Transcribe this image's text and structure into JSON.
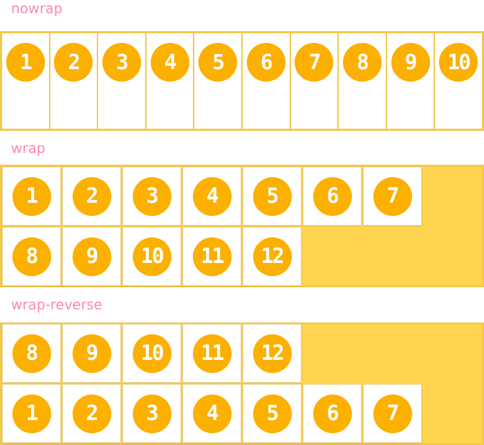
{
  "sections": [
    {
      "label": "nowrap",
      "items": [
        "1",
        "2",
        "3",
        "4",
        "5",
        "6",
        "7",
        "8",
        "9",
        "10"
      ]
    },
    {
      "label": "wrap",
      "items": [
        "1",
        "2",
        "3",
        "4",
        "5",
        "6",
        "7",
        "8",
        "9",
        "10",
        "11",
        "12"
      ]
    },
    {
      "label": "wrap-reverse",
      "items": [
        "1",
        "2",
        "3",
        "4",
        "5",
        "6",
        "7",
        "8",
        "9",
        "10",
        "11",
        "12"
      ]
    }
  ],
  "colors": {
    "label": "#ff88aa",
    "circle": "#fcb000",
    "container_border": "#f5c945",
    "container_bg": "#ffd54f"
  }
}
